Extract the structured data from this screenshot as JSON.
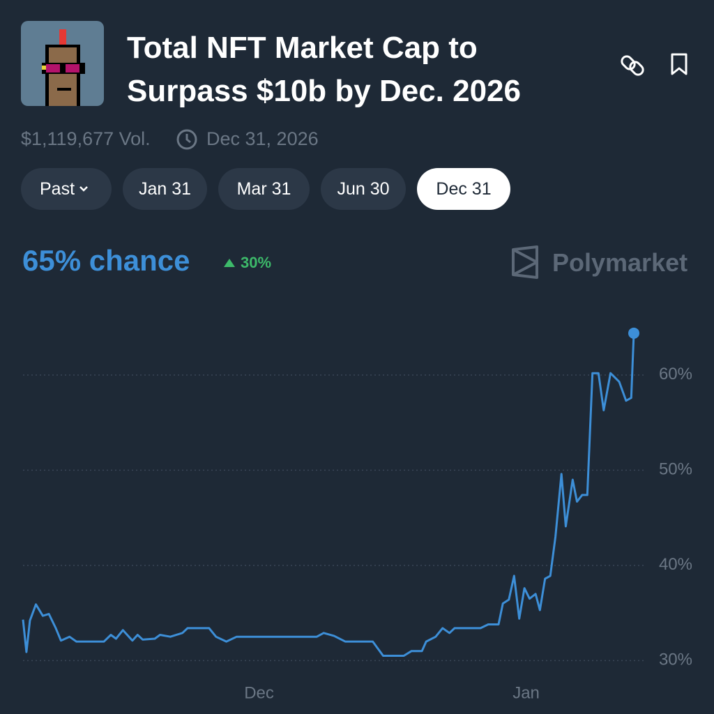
{
  "header": {
    "title": "Total NFT Market Cap to Surpass $10b by Dec. 2026",
    "volume": "$1,119,677 Vol.",
    "end_date": "Dec 31, 2026"
  },
  "tabs": [
    "Past",
    "Jan 31",
    "Mar 31",
    "Jun 30",
    "Dec 31"
  ],
  "summary": {
    "chance": "65% chance",
    "change": "30%",
    "brand": "Polymarket"
  },
  "chart_data": {
    "type": "line",
    "color": "#3d8fd8",
    "grid": true,
    "x": [
      -27.4,
      -27.0,
      -26.6,
      -25.9,
      -25.1,
      -24.4,
      -23.6,
      -23.0,
      -22.0,
      -21.2,
      -18.0,
      -17.2,
      -16.6,
      -15.8,
      -14.7,
      -14.1,
      -13.5,
      -12.1,
      -11.5,
      -10.3,
      -8.9,
      -8.3,
      -5.8,
      -5.0,
      -3.8,
      -2.6,
      6.7,
      7.5,
      8.7,
      10.0,
      13.2,
      14.4,
      16.8,
      17.7,
      18.9,
      19.4,
      20.5,
      21.3,
      22.1,
      22.7,
      25.7,
      26.6,
      27.8,
      28.3,
      29.0,
      29.6,
      30.2,
      30.8,
      31.4,
      32.1,
      32.6,
      33.2,
      33.8,
      34.4,
      35.1,
      35.6,
      36.4,
      36.9,
      37.5,
      38.1,
      38.7,
      39.4,
      40.0,
      40.8,
      41.8,
      42.6,
      43.2,
      43.5
    ],
    "values": [
      34.3,
      30.9,
      34.2,
      35.9,
      34.7,
      34.9,
      33.4,
      32.1,
      32.5,
      32.0,
      32.0,
      32.7,
      32.3,
      33.2,
      32.1,
      32.7,
      32.2,
      32.3,
      32.7,
      32.5,
      32.9,
      33.4,
      33.4,
      32.5,
      32.0,
      32.5,
      32.5,
      32.9,
      32.6,
      32.0,
      32.0,
      30.5,
      30.5,
      31.0,
      31.0,
      32.0,
      32.5,
      33.4,
      32.9,
      33.4,
      33.4,
      33.8,
      33.8,
      36.0,
      36.4,
      38.9,
      34.4,
      37.6,
      36.5,
      37.0,
      35.3,
      38.6,
      38.9,
      43.0,
      49.6,
      44.1,
      49.0,
      46.7,
      47.4,
      47.4,
      60.2,
      60.2,
      56.3,
      60.2,
      59.3,
      57.3,
      57.6,
      64.4
    ],
    "xlim": [
      -27.4,
      43.5
    ],
    "xticks": [
      {
        "value": 0,
        "label": "Dec"
      },
      {
        "value": 31,
        "label": "Jan"
      }
    ],
    "ylim": [
      29,
      66
    ],
    "yticks": [
      {
        "value": 30,
        "label": "30%"
      },
      {
        "value": 40,
        "label": "40%"
      },
      {
        "value": 50,
        "label": "50%"
      },
      {
        "value": 60,
        "label": "60%"
      }
    ]
  }
}
